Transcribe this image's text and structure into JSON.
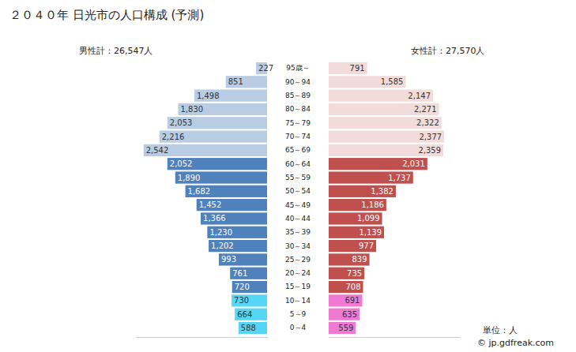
{
  "chart_data": {
    "type": "bar",
    "orientation": "horizontal",
    "title": "２０４０年 日光市の人口構成 (予測)",
    "annotations": [
      "男性計：26,547人",
      "女性計：27,570人",
      "単位：人",
      "© jp.gdfreak.com"
    ],
    "categories": [
      "95歳～",
      "90～94",
      "85～89",
      "80～84",
      "75～79",
      "70～74",
      "65～69",
      "60～64",
      "55～59",
      "50～54",
      "45～49",
      "40～44",
      "35～39",
      "30～34",
      "25～29",
      "20～24",
      "15～19",
      "10～14",
      "5～9",
      "0～4"
    ],
    "series": [
      {
        "values": [
          227,
          851,
          1498,
          1830,
          2053,
          2216,
          2542,
          2052,
          1890,
          1682,
          1452,
          1366,
          1230,
          1202,
          993,
          761,
          720,
          730,
          664,
          588
        ],
        "value_labels": [
          "227",
          "851",
          "1,498",
          "1,830",
          "2,053",
          "2,216",
          "2,542",
          "2,052",
          "1,890",
          "1,682",
          "1,452",
          "1,366",
          "1,230",
          "1,202",
          "993",
          "761",
          "720",
          "730",
          "664",
          "588"
        ],
        "colors": [
          "#b8cce4",
          "#b8cce4",
          "#b8cce4",
          "#b8cce4",
          "#b8cce4",
          "#b8cce4",
          "#b8cce4",
          "#4f81bd",
          "#4f81bd",
          "#4f81bd",
          "#4f81bd",
          "#4f81bd",
          "#4f81bd",
          "#4f81bd",
          "#4f81bd",
          "#4f81bd",
          "#4f81bd",
          "#55d6f5",
          "#55d6f5",
          "#55d6f5"
        ]
      },
      {
        "values": [
          791,
          1585,
          2147,
          2271,
          2322,
          2377,
          2359,
          2031,
          1737,
          1382,
          1186,
          1099,
          1139,
          977,
          839,
          735,
          708,
          691,
          635,
          559
        ],
        "value_labels": [
          "791",
          "1,585",
          "2,147",
          "2,271",
          "2,322",
          "2,377",
          "2,359",
          "2,031",
          "1,737",
          "1,382",
          "1,186",
          "1,099",
          "1,139",
          "977",
          "839",
          "735",
          "708",
          "691",
          "635",
          "559"
        ],
        "colors": [
          "#f2dcdb",
          "#f2dcdb",
          "#f2dcdb",
          "#f2dcdb",
          "#f2dcdb",
          "#f2dcdb",
          "#f2dcdb",
          "#c0504d",
          "#c0504d",
          "#c0504d",
          "#c0504d",
          "#c0504d",
          "#c0504d",
          "#c0504d",
          "#c0504d",
          "#c0504d",
          "#c0504d",
          "#f07ad2",
          "#f07ad2",
          "#f07ad2"
        ]
      }
    ],
    "xlim": [
      0,
      2700
    ],
    "data_labels": true,
    "tick_labels": "y",
    "grid": false
  }
}
